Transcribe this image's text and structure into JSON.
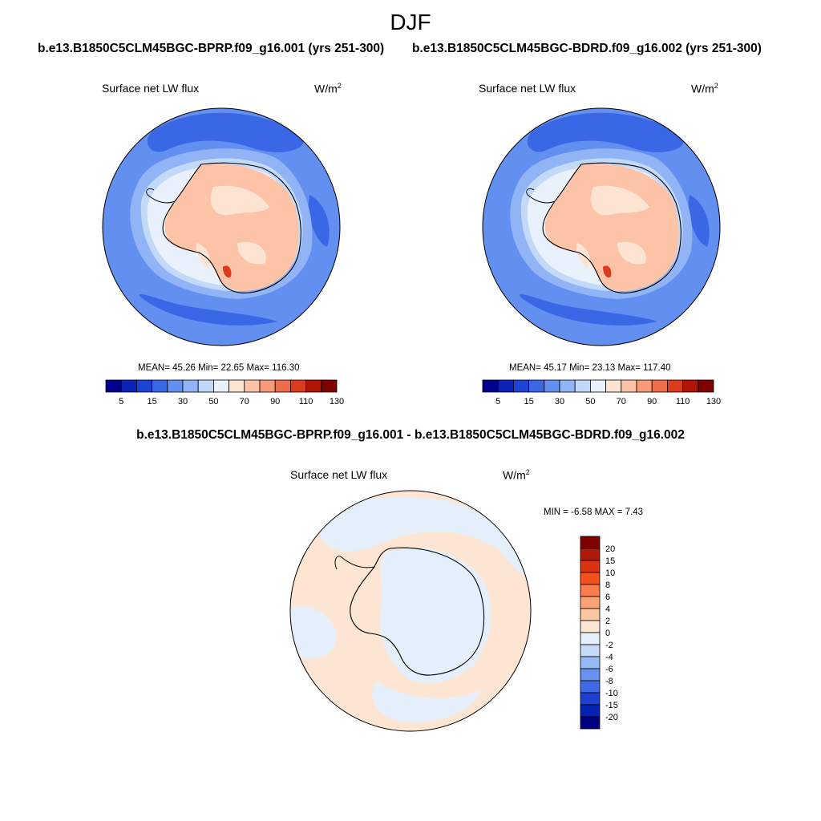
{
  "season": "DJF",
  "panels": [
    {
      "id": "case1",
      "case_title": "b.e13.B1850C5CLM45BGC-BPRP.f09_g16.001 (yrs 251-300)",
      "variable": "Surface net LW flux",
      "units_base": "W/m",
      "units_exp": "2",
      "stats": "MEAN=  45.26  Min=  22.65  Max= 116.30"
    },
    {
      "id": "case2",
      "case_title": "b.e13.B1850C5CLM45BGC-BDRD.f09_g16.002 (yrs 251-300)",
      "variable": "Surface net LW flux",
      "units_base": "W/m",
      "units_exp": "2",
      "stats": "MEAN=  45.17  Min=  23.13  Max= 117.40"
    }
  ],
  "diff": {
    "title": "b.e13.B1850C5CLM45BGC-BPRP.f09_g16.001 - b.e13.B1850C5CLM45BGC-BDRD.f09_g16.002",
    "variable": "Surface net LW flux",
    "units_base": "W/m",
    "units_exp": "2",
    "stats": "MIN =  -6.58 MAX =   7.43"
  },
  "colorbar_main": {
    "labels": [
      "5",
      "15",
      "30",
      "50",
      "70",
      "90",
      "110",
      "130"
    ],
    "colors": [
      "#00008f",
      "#0a22b8",
      "#1f43d6",
      "#3a67e6",
      "#6390f0",
      "#90b4f5",
      "#c2d9fa",
      "#e8f1fc",
      "#fde4d2",
      "#fcc3a6",
      "#f89a78",
      "#ef6c4a",
      "#de3a1e",
      "#b21408",
      "#7f0000"
    ]
  },
  "colorbar_diff": {
    "labels": [
      "20",
      "15",
      "10",
      "8",
      "6",
      "4",
      "2",
      "0",
      "-2",
      "-4",
      "-6",
      "-8",
      "-10",
      "-15",
      "-20"
    ],
    "colors": [
      "#7f0000",
      "#b01a08",
      "#d9330f",
      "#f5501c",
      "#fb7c4c",
      "#fca173",
      "#fcc6a3",
      "#fde5d4",
      "#e5effb",
      "#c4daf7",
      "#97baf2",
      "#6992ec",
      "#3f6ae6",
      "#1c40d2",
      "#0620b0",
      "#000080"
    ]
  },
  "map_colors": {
    "ocean_outer": "#6390f0",
    "ocean_band_dark": "#3a67e6",
    "ice_pale": "#c2d9fa",
    "near_coast": "#e8f1fc",
    "continent": "#fcc3a6",
    "continent_light": "#fde4d2",
    "hotspot": "#de3a1e",
    "diff_positive": "#fde5d4",
    "diff_negative": "#e5effb"
  }
}
